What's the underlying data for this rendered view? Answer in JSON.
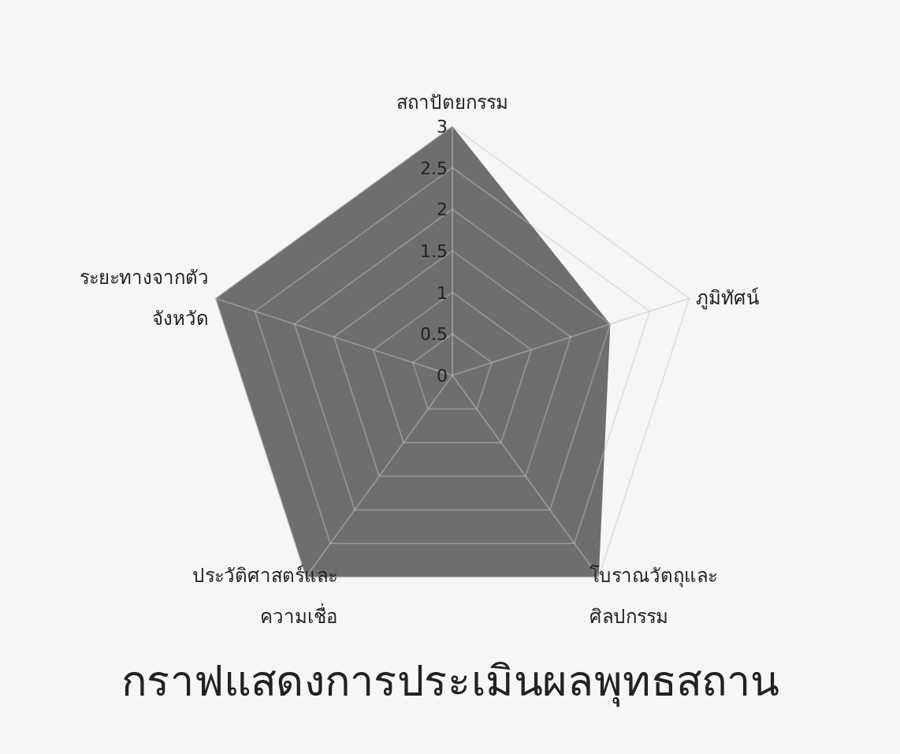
{
  "chart_data": {
    "type": "radar",
    "title": "กราฟแสดงการประเมินผลพุทธสถาน",
    "categories": [
      "สถาปัตยกรรม",
      "ภูมิทัศน์",
      "โบราณวัตถุและศิลปกรรม",
      "ประวัติศาสตร์และความเชื่อ",
      "ระยะทางจากตัวจังหวัด"
    ],
    "series": [
      {
        "color": "#6e6e6e",
        "values": [
          3,
          2,
          3,
          3,
          3
        ]
      }
    ],
    "ylim": [
      0,
      3
    ],
    "yticks": [
      0,
      0.5,
      1,
      1.5,
      2,
      2.5,
      3
    ],
    "grid": true
  }
}
